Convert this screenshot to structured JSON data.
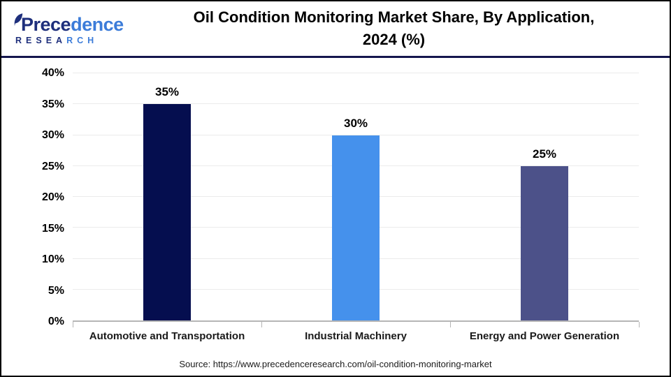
{
  "header": {
    "logo": {
      "name_dark": "Prece",
      "name_light": "dence",
      "subtitle_dark": "RESEA",
      "subtitle_light": "RCH"
    },
    "title_line1": "Oil Condition Monitoring Market Share, By Application,",
    "title_line2": "2024 (%)"
  },
  "chart_data": {
    "type": "bar",
    "title": "Oil Condition Monitoring Market Share, By Application, 2024 (%)",
    "categories": [
      "Automotive and Transportation",
      "Industrial Machinery",
      "Energy and Power Generation"
    ],
    "values": [
      35,
      30,
      25
    ],
    "data_labels": [
      "35%",
      "30%",
      "25%"
    ],
    "bar_colors": [
      "#050e4f",
      "#4591ec",
      "#4c5189"
    ],
    "xlabel": "",
    "ylabel": "",
    "ylim": [
      0,
      40
    ],
    "ytick_step": 5,
    "ytick_labels": [
      "0%",
      "5%",
      "10%",
      "15%",
      "20%",
      "25%",
      "30%",
      "35%",
      "40%"
    ],
    "grid": true,
    "legend": "none"
  },
  "colors": {
    "bar_automotive": "#050e4f",
    "bar_industrial": "#4591ec",
    "bar_energy": "#4c5189",
    "header_rule": "#14164d",
    "logo_dark": "#1e2f7c",
    "logo_light": "#3c7cd9"
  },
  "footer": {
    "source": "Source: https://www.precedenceresearch.com/oil-condition-monitoring-market"
  }
}
